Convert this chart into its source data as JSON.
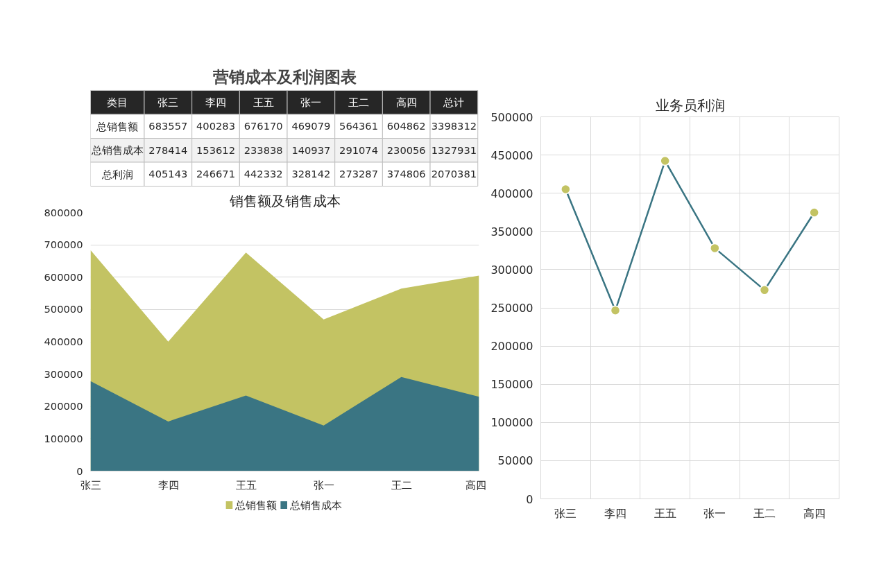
{
  "chart_data": [
    {
      "type": "other",
      "title": "营销成本及利润图表",
      "annotations": [
        "类目"
      ],
      "data_labels": true,
      "categories": [
        "张三",
        "李四",
        "王五",
        "张一",
        "王二",
        "高四",
        "总计"
      ],
      "series": [
        {
          "name": "总销售额",
          "values": [
            683557,
            400283,
            676170,
            469079,
            564361,
            604862,
            3398312
          ]
        },
        {
          "name": "总销售成本",
          "values": [
            278414,
            153612,
            233838,
            140937,
            291074,
            230056,
            1327931
          ]
        },
        {
          "name": "总利润",
          "values": [
            405143,
            246671,
            442332,
            328142,
            273287,
            374806,
            2070381
          ]
        }
      ]
    },
    {
      "type": "area",
      "title": "销售额及销售成本",
      "categories": [
        "张三",
        "李四",
        "王五",
        "张一",
        "王二",
        "高四"
      ],
      "series": [
        {
          "name": "总销售额",
          "color": "#c3c363",
          "values": [
            683557,
            400283,
            676170,
            469079,
            564361,
            604862
          ]
        },
        {
          "name": "总销售成本",
          "color": "#3a7583",
          "values": [
            278414,
            153612,
            233838,
            140937,
            291074,
            230056
          ]
        }
      ],
      "ylim": [
        0,
        800000
      ],
      "yticks": [
        0,
        100000,
        200000,
        300000,
        400000,
        500000,
        600000,
        700000,
        800000
      ],
      "grid": "y",
      "legend": "bottom"
    },
    {
      "type": "line",
      "title": "业务员利润",
      "categories": [
        "张三",
        "李四",
        "王五",
        "张一",
        "王二",
        "高四"
      ],
      "series": [
        {
          "color": "#3a7583",
          "colors": [
            "#c3c363",
            "#c3c363",
            "#c3c363",
            "#c3c363",
            "#c3c363",
            "#c3c363"
          ],
          "values": [
            405143,
            246671,
            442332,
            328142,
            273287,
            374806
          ]
        }
      ],
      "ylim": [
        0,
        500000
      ],
      "yticks": [
        0,
        50000,
        100000,
        150000,
        200000,
        250000,
        300000,
        350000,
        400000,
        450000,
        500000
      ],
      "grid": true,
      "marker": "circle"
    }
  ]
}
